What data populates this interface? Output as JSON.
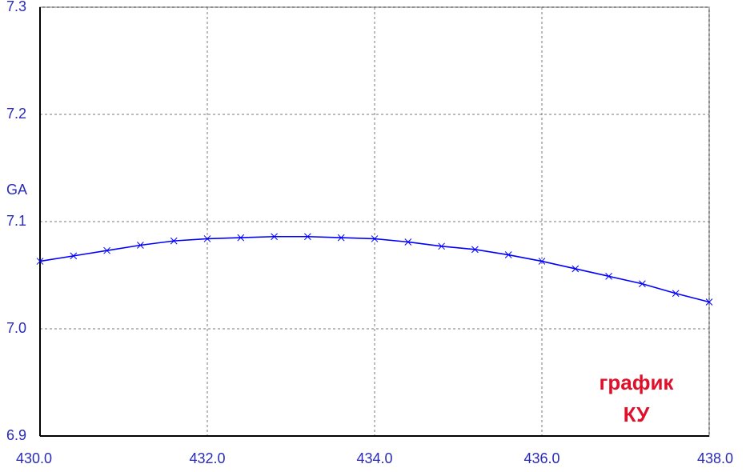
{
  "chart_data": {
    "type": "line",
    "y_label": "GA",
    "annotations": [
      "график",
      "КУ"
    ],
    "x": [
      430.0,
      430.4,
      430.8,
      431.2,
      431.6,
      432.0,
      432.4,
      432.8,
      433.2,
      433.6,
      434.0,
      434.4,
      434.8,
      435.2,
      435.6,
      436.0,
      436.4,
      436.8,
      437.2,
      437.6,
      438.0
    ],
    "values": [
      7.063,
      7.068,
      7.073,
      7.078,
      7.082,
      7.084,
      7.085,
      7.086,
      7.086,
      7.085,
      7.084,
      7.081,
      7.077,
      7.074,
      7.069,
      7.063,
      7.056,
      7.049,
      7.042,
      7.033,
      7.025
    ],
    "color": "#0000ff",
    "xlim": [
      430,
      438
    ],
    "xticks": [
      {
        "value": 430,
        "label": "430.0"
      },
      {
        "value": 432,
        "label": "432.0"
      },
      {
        "value": 434,
        "label": "434.0"
      },
      {
        "value": 436,
        "label": "436.0"
      },
      {
        "value": 438,
        "label": "438.0"
      }
    ],
    "ylim": [
      6.9,
      7.3
    ],
    "yticks": [
      {
        "value": 6.9,
        "label": "6.9"
      },
      {
        "value": 7,
        "label": "7.0"
      },
      {
        "value": 7.1,
        "label": "7.1"
      },
      {
        "value": 7.2,
        "label": "7.2"
      },
      {
        "value": 7.3,
        "label": "7.3"
      }
    ],
    "grid": true
  }
}
